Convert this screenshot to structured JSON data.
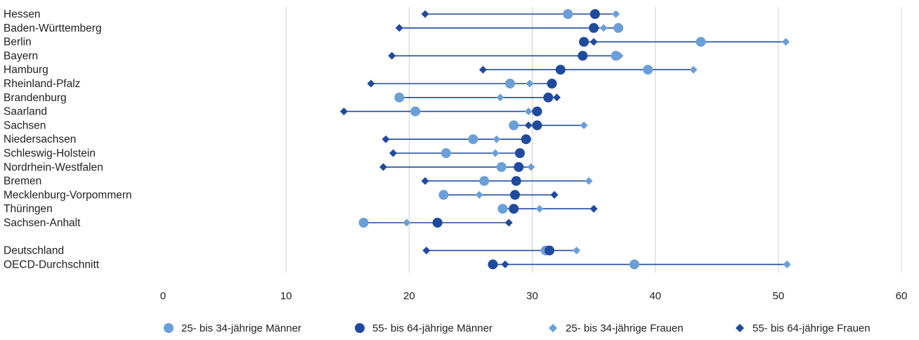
{
  "chart_data": {
    "type": "scatter",
    "title": "",
    "xlabel": "",
    "ylabel": "",
    "xlim": [
      0,
      60
    ],
    "xticks": [
      0,
      10,
      20,
      30,
      40,
      50,
      60
    ],
    "grid": "vertical",
    "legend_position": "bottom",
    "colors": {
      "light": "#6a9fd8",
      "dark": "#1f4a9e",
      "line": "#1f4a9e"
    },
    "categories": [
      "Hessen",
      "Baden-Württemberg",
      "Berlin",
      "Bayern",
      "Hamburg",
      "Rheinland-Pfalz",
      "Brandenburg",
      "Saarland",
      "Sachsen",
      "Niedersachsen",
      "Schleswig-Holstein",
      "Nordrhein-Westfalen",
      "Bremen",
      "Mecklenburg-Vorpommern",
      "Thüringen",
      "Sachsen-Anhalt",
      "",
      "Deutschland",
      "OECD-Durchschnitt"
    ],
    "series": [
      {
        "name": "25- bis 34-jährige Männer",
        "marker": "circle",
        "color": "#6a9fd8",
        "values": [
          32.9,
          37.0,
          43.7,
          36.8,
          39.4,
          28.2,
          19.2,
          20.5,
          28.5,
          25.2,
          23.0,
          27.5,
          26.1,
          22.8,
          27.6,
          16.3,
          null,
          31.1,
          38.3
        ]
      },
      {
        "name": "55- bis 64-jährige Männer",
        "marker": "circle",
        "color": "#1f4a9e",
        "values": [
          35.1,
          35.0,
          34.2,
          34.1,
          32.3,
          31.6,
          31.3,
          30.4,
          30.4,
          29.5,
          29.0,
          28.9,
          28.7,
          28.6,
          28.5,
          22.3,
          null,
          31.4,
          26.8
        ]
      },
      {
        "name": "25- bis 34-jährige Frauen",
        "marker": "diamond",
        "color": "#6a9fd8",
        "values": [
          36.8,
          35.8,
          50.6,
          37.1,
          43.1,
          29.8,
          27.4,
          29.7,
          34.2,
          27.1,
          27.0,
          29.9,
          34.6,
          25.7,
          30.6,
          19.8,
          null,
          33.6,
          50.7
        ]
      },
      {
        "name": "55- bis 64-jährige Frauen",
        "marker": "diamond",
        "color": "#1f4a9e",
        "values": [
          21.3,
          19.2,
          35.0,
          18.6,
          26.0,
          16.9,
          32.0,
          14.7,
          29.7,
          18.1,
          18.7,
          17.9,
          21.3,
          31.8,
          35.0,
          28.1,
          null,
          21.4,
          27.8
        ]
      }
    ]
  }
}
